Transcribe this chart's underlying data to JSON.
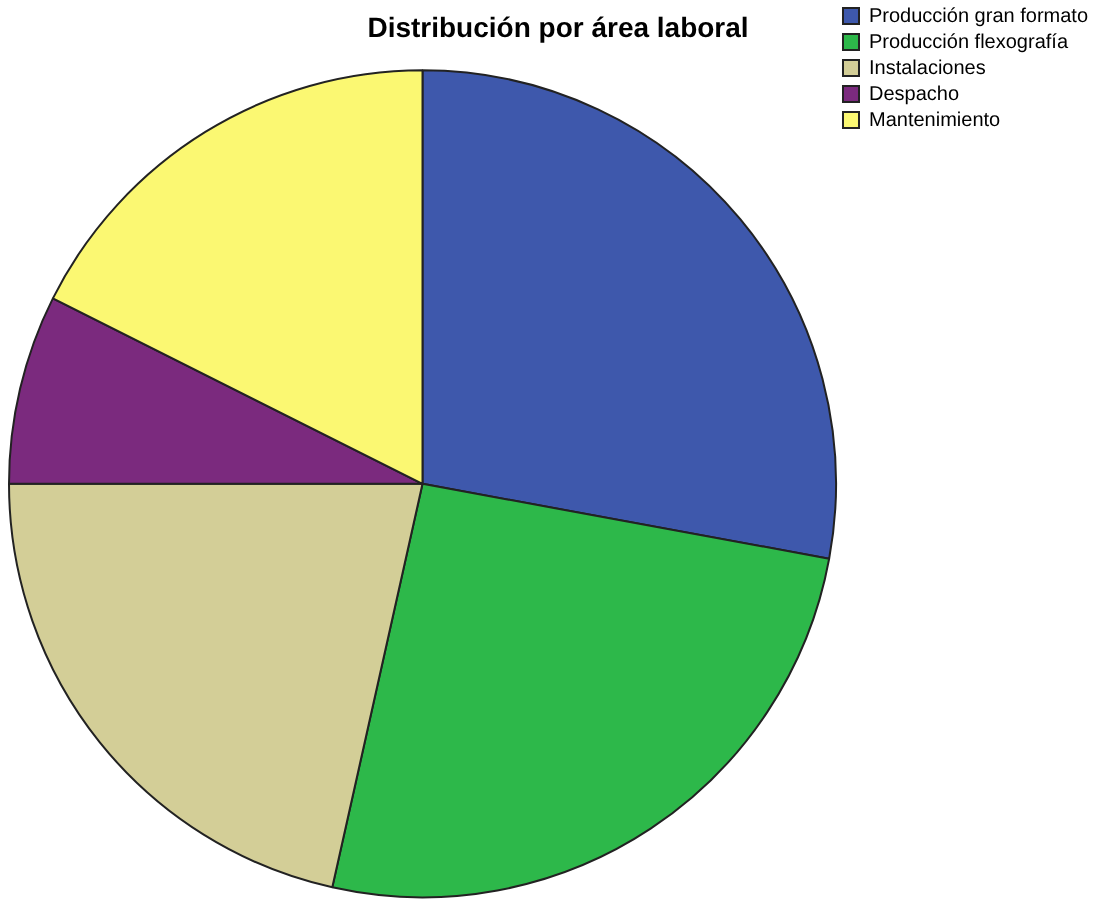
{
  "chart_data": {
    "type": "pie",
    "title": "Distribución por área laboral",
    "categories": [
      "Producción gran formato",
      "Producción flexografía",
      "Instalaciones",
      "Despacho",
      "Mantenimiento"
    ],
    "values": [
      27.9,
      25.6,
      21.5,
      7.4,
      17.6
    ],
    "colors": [
      "#3e58ac",
      "#2db84a",
      "#d3ce97",
      "#7b2a7e",
      "#fbf872"
    ],
    "legend": "top right"
  }
}
